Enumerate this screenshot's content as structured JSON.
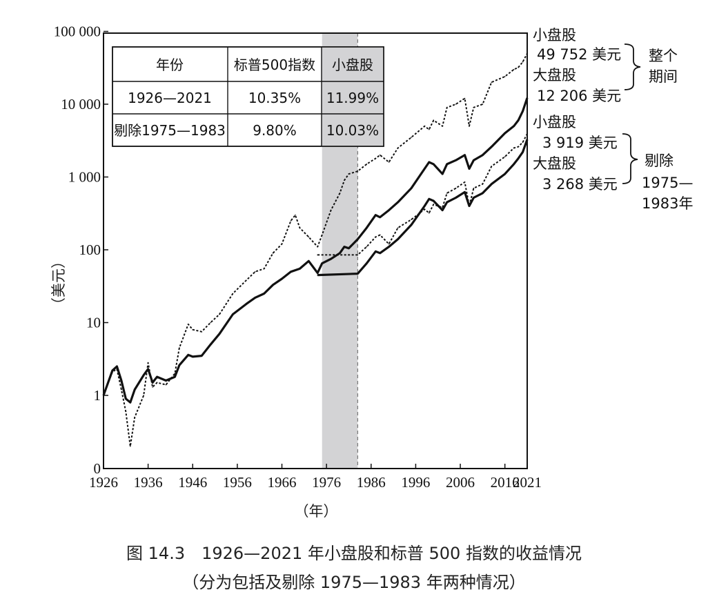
{
  "caption": {
    "line1": "图 14.3　1926—2021 年小盘股和标普 500 指数的收益情况",
    "line2": "（分为包括及剔除 1975—1983 年两种情况）"
  },
  "chart_data": {
    "type": "line",
    "xlabel": "（年）",
    "ylabel": "（美元）",
    "y_scale": "log",
    "xlim": [
      1926,
      2021
    ],
    "y_tick_labels": [
      "0",
      "1",
      "10",
      "100",
      "1 000",
      "10 000",
      "100 000"
    ],
    "x_tick_labels": [
      "1926",
      "1936",
      "1946",
      "1956",
      "1966",
      "1976",
      "1986",
      "1996",
      "2006",
      "2016",
      "2021"
    ],
    "shaded_period": [
      1975,
      1983
    ],
    "table": {
      "headers": [
        "年份",
        "标普500指数",
        "小盘股"
      ],
      "rows": [
        [
          "1926—2021",
          "10.35%",
          "11.99%"
        ],
        [
          "剔除1975—1983",
          "9.80%",
          "10.03%"
        ]
      ]
    },
    "annotations": {
      "full_small_label": "小盘股",
      "full_small_value": "49 752 美元",
      "full_large_label": "大盘股",
      "full_large_value": "12 206 美元",
      "full_group": "整个期间",
      "full_group_line1": "整个",
      "full_group_line2": "期间",
      "ex_small_label": "小盘股",
      "ex_small_value": "3 919 美元",
      "ex_large_label": "大盘股",
      "ex_large_value": "3 268 美元",
      "ex_group_line1": "剔除",
      "ex_group_line2": "1975—",
      "ex_group_line3": "1983年"
    },
    "series": [
      {
        "name": "小盘股",
        "style": "dotted",
        "x": [
          1926,
          1928,
          1929,
          1930,
          1931,
          1932,
          1933,
          1935,
          1936,
          1937,
          1938,
          1940,
          1942,
          1943,
          1945,
          1946,
          1948,
          1950,
          1952,
          1955,
          1958,
          1960,
          1962,
          1964,
          1966,
          1968,
          1969,
          1970,
          1972,
          1974,
          1975,
          1977,
          1979,
          1980,
          1981,
          1983,
          1985,
          1987,
          1988,
          1990,
          1992,
          1995,
          1998,
          1999,
          2000,
          2002,
          2003,
          2005,
          2007,
          2008,
          2009,
          2011,
          2013,
          2016,
          2018,
          2019,
          2020,
          2021
        ],
        "values": [
          1,
          2.1,
          2.3,
          1.2,
          0.6,
          0.2,
          0.5,
          1,
          2.8,
          1.3,
          1.5,
          1.4,
          2,
          4.5,
          9.5,
          8,
          7.5,
          10,
          13,
          25,
          38,
          50,
          55,
          90,
          120,
          250,
          300,
          200,
          150,
          110,
          160,
          350,
          600,
          900,
          1100,
          1200,
          1500,
          1800,
          2000,
          1600,
          2500,
          3500,
          5000,
          4500,
          6000,
          5000,
          9000,
          10000,
          12000,
          5000,
          9000,
          10000,
          20000,
          24000,
          30000,
          32000,
          38000,
          49752
        ]
      },
      {
        "name": "大盘股",
        "style": "solid",
        "x": [
          1926,
          1928,
          1929,
          1930,
          1931,
          1932,
          1933,
          1935,
          1936,
          1937,
          1938,
          1940,
          1942,
          1943,
          1945,
          1946,
          1948,
          1950,
          1952,
          1955,
          1958,
          1960,
          1962,
          1964,
          1966,
          1968,
          1970,
          1972,
          1974,
          1975,
          1977,
          1979,
          1980,
          1981,
          1983,
          1985,
          1987,
          1988,
          1990,
          1992,
          1995,
          1998,
          1999,
          2000,
          2002,
          2003,
          2005,
          2007,
          2008,
          2009,
          2011,
          2013,
          2016,
          2018,
          2019,
          2020,
          2021
        ],
        "values": [
          1,
          2.2,
          2.5,
          1.6,
          0.9,
          0.8,
          1.2,
          1.9,
          2.3,
          1.5,
          1.8,
          1.6,
          1.8,
          2.6,
          3.6,
          3.4,
          3.5,
          5,
          7,
          13,
          18,
          22,
          25,
          33,
          40,
          50,
          55,
          70,
          48,
          65,
          75,
          90,
          110,
          105,
          140,
          200,
          300,
          280,
          350,
          450,
          700,
          1300,
          1600,
          1500,
          1100,
          1500,
          1700,
          2000,
          1300,
          1700,
          2000,
          2600,
          4000,
          5000,
          6000,
          8000,
          12206
        ]
      },
      {
        "name": "小盘股（剔除1975—1983）",
        "style": "dotted",
        "x": [
          1974,
          1983,
          1985,
          1987,
          1988,
          1990,
          1992,
          1995,
          1998,
          1999,
          2000,
          2002,
          2003,
          2005,
          2007,
          2008,
          2009,
          2011,
          2013,
          2016,
          2018,
          2019,
          2020,
          2021
        ],
        "values": [
          85,
          85,
          110,
          150,
          160,
          120,
          200,
          260,
          360,
          320,
          420,
          380,
          600,
          700,
          850,
          400,
          700,
          800,
          1400,
          1900,
          2500,
          2600,
          3000,
          3919
        ]
      },
      {
        "name": "大盘股（剔除1975—1983）",
        "style": "solid",
        "x": [
          1974,
          1983,
          1985,
          1987,
          1988,
          1990,
          1992,
          1995,
          1998,
          1999,
          2000,
          2002,
          2003,
          2005,
          2007,
          2008,
          2009,
          2011,
          2013,
          2016,
          2018,
          2019,
          2020,
          2021
        ],
        "values": [
          45,
          47,
          65,
          95,
          90,
          110,
          140,
          220,
          400,
          500,
          470,
          350,
          450,
          520,
          620,
          400,
          520,
          600,
          800,
          1100,
          1500,
          1800,
          2200,
          3268
        ]
      }
    ]
  }
}
